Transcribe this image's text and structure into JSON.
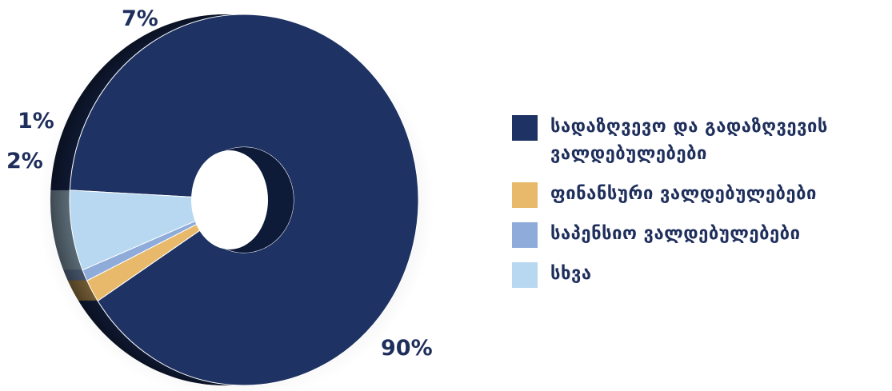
{
  "chart_data": {
    "type": "pie",
    "variant": "donut-3d",
    "categories": [
      "სადაზღვევო და გადაზღვევის ვალდებულებები",
      "ფინანსური ვალდებულებები",
      "საპენსიო ვალდებულებები",
      "სხვა"
    ],
    "values": [
      90,
      2,
      1,
      7
    ],
    "data_labels": [
      "90%",
      "2%",
      "1%",
      "7%"
    ],
    "colors": [
      "#1e3263",
      "#e8b96a",
      "#8eabd9",
      "#b7d8f0"
    ],
    "legend_position": "right",
    "title": ""
  }
}
